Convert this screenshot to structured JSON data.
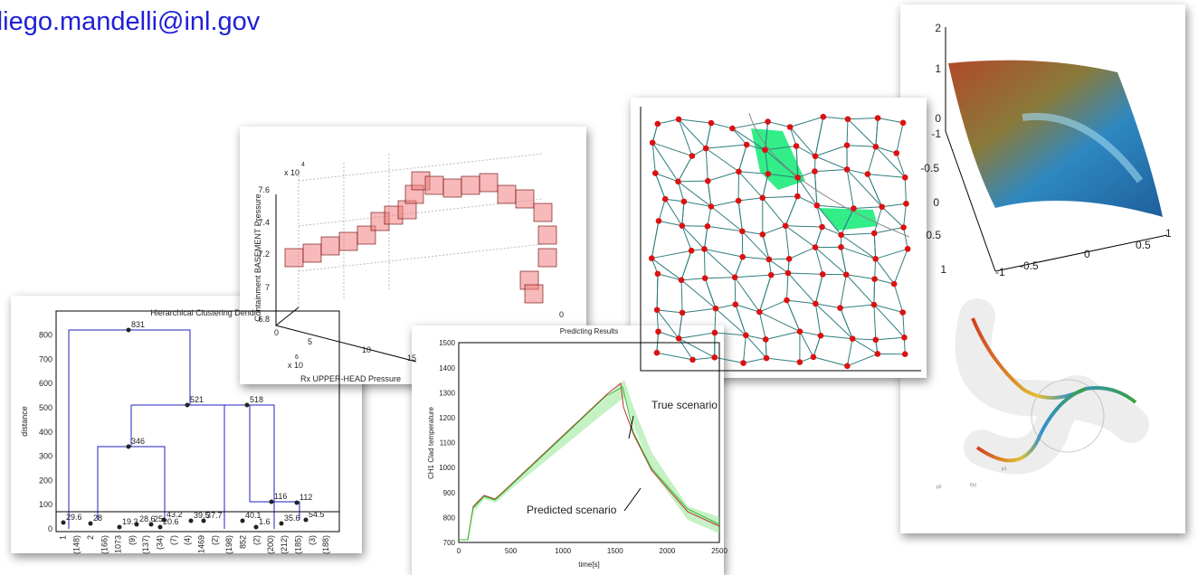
{
  "header": {
    "email": "diego.mandelli@inl.gov"
  },
  "dendrogram": {
    "title": "Hierarchical Clustering Dendr",
    "ylabel": "distance",
    "yticks": [
      "0",
      "100",
      "200",
      "300",
      "400",
      "500",
      "600",
      "700",
      "800"
    ],
    "node_labels": [
      "831",
      "521",
      "518",
      "346",
      "116",
      "112",
      "29.6",
      "28",
      "19.3",
      "28.6",
      "25",
      "20.6",
      "43.2",
      "39.5",
      "37.7",
      "40.1",
      "1.6",
      "35.6",
      "54.5"
    ],
    "leaf_labels": [
      "1",
      "(148)",
      "2",
      "(166)",
      "1073",
      "(9)",
      "(137)",
      "(34)",
      "(7)",
      "(4)",
      "1469",
      "(2)",
      "(198)",
      "852",
      "(2)",
      "(200)",
      "(212)",
      "(185)",
      "(3)",
      "(188)"
    ]
  },
  "pressure3d": {
    "ylabel": "Containment BASEMENT Pressure",
    "xlabel": "Rx UPPER-HEAD Pressure",
    "y_exponent": "x 10",
    "y_power": "4",
    "x_exponent": "x 10",
    "x_power": "6",
    "yticks": [
      "6.8",
      "7",
      "7.2",
      "7.4",
      "7.6"
    ],
    "xticks": [
      "0",
      "5",
      "10",
      "15"
    ],
    "zticks": [
      "0"
    ]
  },
  "prediction": {
    "title": "Predicting Results",
    "ylabel": "CH1 Clad temperature",
    "xlabel": "time[s]",
    "yticks": [
      "700",
      "800",
      "900",
      "1000",
      "1100",
      "1200",
      "1300",
      "1400",
      "1500"
    ],
    "xticks": [
      "0",
      "500",
      "1000",
      "1500",
      "2000",
      "2500"
    ],
    "annotations": [
      "True scenario",
      "Predicted scenario"
    ]
  },
  "surface": {
    "zticks": [
      "2",
      "1",
      "0"
    ],
    "yticks": [
      "-1",
      "-0.5",
      "0",
      "0.5",
      "1"
    ],
    "xticks": [
      "-1",
      "-0.5",
      "0",
      "0.5",
      "1"
    ]
  },
  "tube": {
    "labels": [
      "p2",
      "f(x)",
      "p1"
    ]
  }
}
